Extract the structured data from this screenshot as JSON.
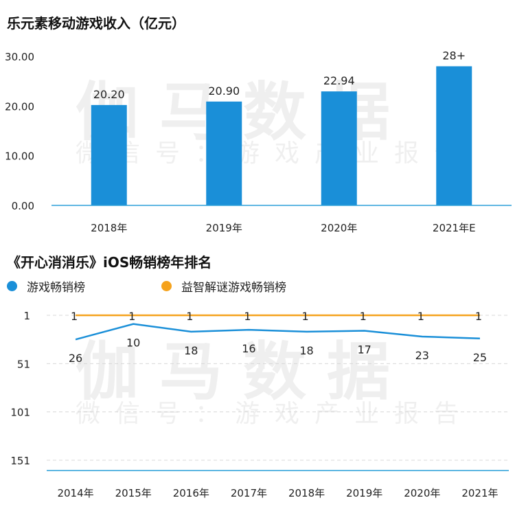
{
  "colors": {
    "blue": "#1a8fd8",
    "orange": "#f5a21c",
    "axis": "#2a9fd8",
    "grid": "#d8d8d8"
  },
  "watermark": {
    "main": "伽马数据",
    "sub": "微信号：游戏产业报告"
  },
  "chart_data": [
    {
      "type": "bar",
      "title": "乐元素移动游戏收入（亿元）",
      "categories": [
        "2018年",
        "2019年",
        "2020年",
        "2021年E"
      ],
      "values": [
        20.2,
        20.9,
        22.94,
        28
      ],
      "data_labels": [
        "20.20",
        "20.90",
        "22.94",
        "28+"
      ],
      "yticks": [
        "30.00",
        "20.00",
        "10.00",
        "0.00"
      ],
      "ylim": [
        0,
        30
      ],
      "grid": false,
      "color": "#1a8fd8"
    },
    {
      "type": "line",
      "title": "《开心消消乐》iOS畅销榜年排名",
      "categories": [
        "2014年",
        "2015年",
        "2016年",
        "2017年",
        "2018年",
        "2019年",
        "2020年",
        "2021年"
      ],
      "series": [
        {
          "name": "游戏畅销榜",
          "values": [
            26,
            10,
            18,
            16,
            18,
            17,
            23,
            25
          ],
          "color": "#1a8fd8"
        },
        {
          "name": "益智解谜游戏畅销榜",
          "values": [
            1,
            1,
            1,
            1,
            1,
            1,
            1,
            1
          ],
          "color": "#f5a21c"
        }
      ],
      "yticks": [
        "1",
        "51",
        "101",
        "151"
      ],
      "ylim": [
        1,
        151
      ],
      "y_inverted": true,
      "grid": true,
      "legend": "top-left"
    }
  ]
}
